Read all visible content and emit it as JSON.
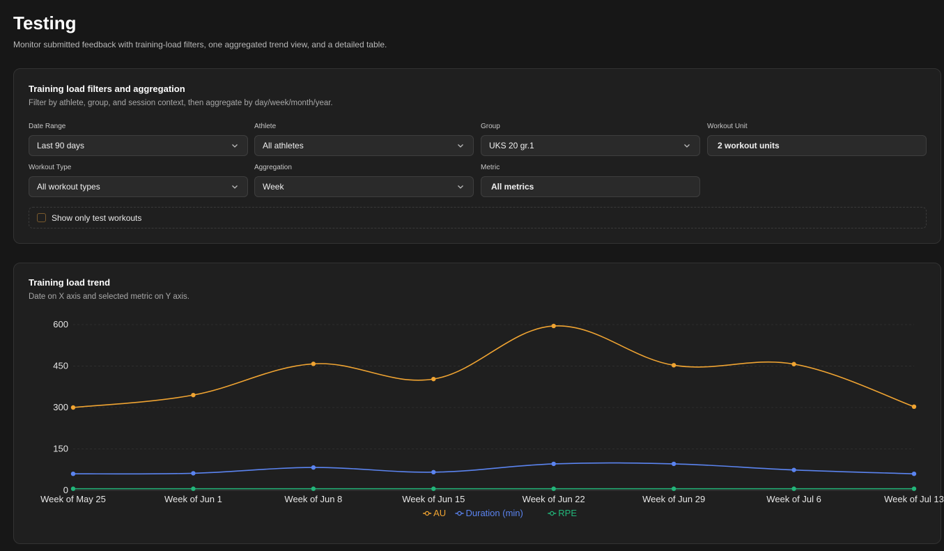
{
  "page": {
    "title": "Testing",
    "subtitle": "Monitor submitted feedback with training-load filters, one aggregated trend view, and a detailed table."
  },
  "filters": {
    "title": "Training load filters and aggregation",
    "subtitle": "Filter by athlete, group, and session context, then aggregate by day/week/month/year.",
    "date_range": {
      "label": "Date Range",
      "value": "Last 90 days"
    },
    "athlete": {
      "label": "Athlete",
      "value": "All athletes"
    },
    "group": {
      "label": "Group",
      "value": "UKS 20 gr.1"
    },
    "workout_unit": {
      "label": "Workout Unit",
      "value": "2 workout units"
    },
    "workout_type": {
      "label": "Workout Type",
      "value": "All workout types"
    },
    "aggregation": {
      "label": "Aggregation",
      "value": "Week"
    },
    "metric": {
      "label": "Metric",
      "value": "All metrics"
    },
    "test_only": {
      "label": "Show only test workouts",
      "checked": false
    }
  },
  "trend": {
    "title": "Training load trend",
    "subtitle": "Date on X axis and selected metric on Y axis."
  },
  "chart_data": {
    "type": "line",
    "categories": [
      "Week of May 25",
      "Week of Jun 1",
      "Week of Jun 8",
      "Week of Jun 15",
      "Week of Jun 22",
      "Week of Jun 29",
      "Week of Jul 6",
      "Week of Jul 13"
    ],
    "series": [
      {
        "name": "AU",
        "color": "#f0a432",
        "values": [
          300,
          345,
          458,
          403,
          595,
          453,
          457,
          303
        ]
      },
      {
        "name": "Duration (min)",
        "color": "#5b84f0",
        "values": [
          60,
          62,
          83,
          66,
          96,
          96,
          74,
          60
        ]
      },
      {
        "name": "RPE",
        "color": "#22b67a",
        "values": [
          6,
          6,
          6,
          6,
          6,
          6,
          6,
          6
        ]
      }
    ],
    "yticks": [
      0,
      150,
      300,
      450,
      600
    ],
    "ylim": [
      0,
      600
    ],
    "grid": true,
    "legend": "bottom-center"
  }
}
